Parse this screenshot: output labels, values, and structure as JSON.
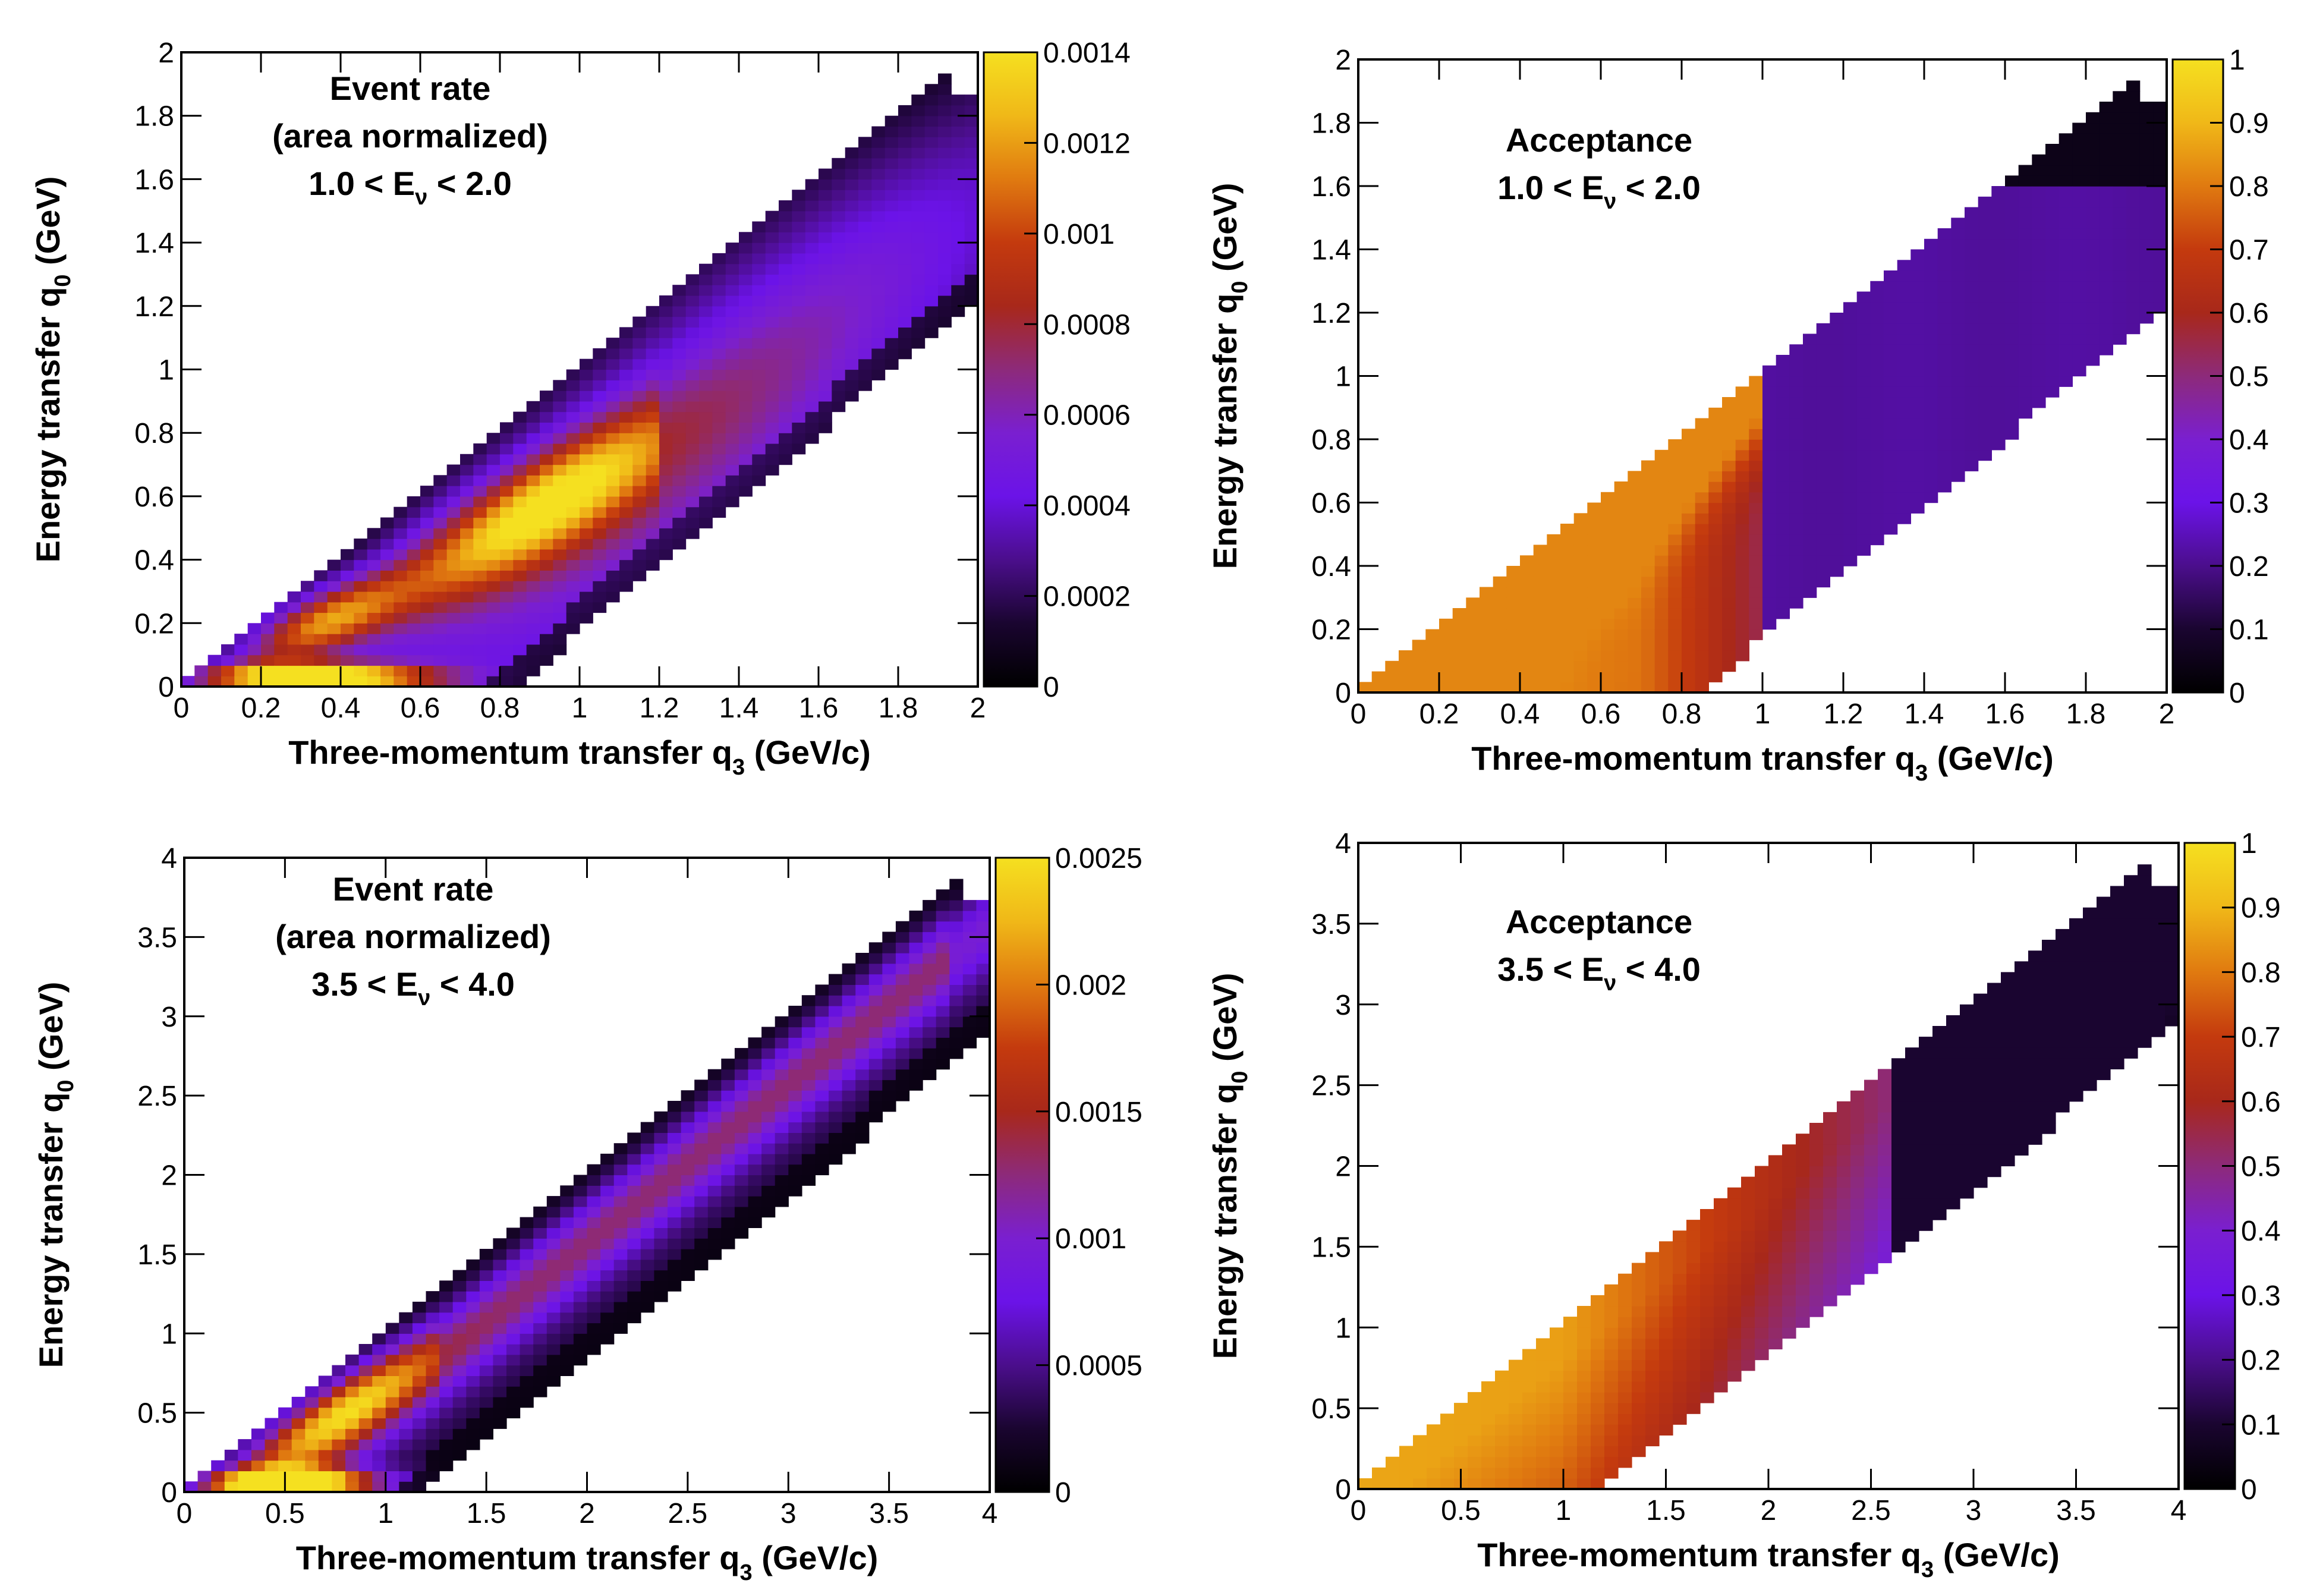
{
  "chart_data": [
    {
      "type": "heatmap",
      "panel": "top-left",
      "xlabel": "Three-momentum transfer q",
      "xlabel_sub": "3",
      "xlabel_unit": " (GeV/c)",
      "ylabel": "Energy transfer q",
      "ylabel_sub": "0",
      "ylabel_unit": " (GeV)",
      "xlim": [
        0,
        2
      ],
      "ylim": [
        0,
        2
      ],
      "xticks": [
        "0",
        "0.2",
        "0.4",
        "0.6",
        "0.8",
        "1",
        "1.2",
        "1.4",
        "1.6",
        "1.8",
        "2"
      ],
      "yticks": [
        "0",
        "0.2",
        "0.4",
        "0.6",
        "0.8",
        "1",
        "1.2",
        "1.4",
        "1.6",
        "1.8",
        "2"
      ],
      "zlim": [
        0,
        0.0014
      ],
      "zticks": [
        "0",
        "0.0002",
        "0.0004",
        "0.0006",
        "0.0008",
        "0.001",
        "0.0012",
        "0.0014"
      ],
      "annotation": [
        "Event rate",
        "(area normalized)"
      ],
      "energy_range": {
        "low": "1.0",
        "var": "E",
        "sub": "ν",
        "high": "2.0"
      },
      "quantity": "rate"
    },
    {
      "type": "heatmap",
      "panel": "top-right",
      "xlabel": "Three-momentum transfer q",
      "xlabel_sub": "3",
      "xlabel_unit": " (GeV/c)",
      "ylabel": "Energy transfer q",
      "ylabel_sub": "0",
      "ylabel_unit": " (GeV)",
      "xlim": [
        0,
        2
      ],
      "ylim": [
        0,
        2
      ],
      "xticks": [
        "0",
        "0.2",
        "0.4",
        "0.6",
        "0.8",
        "1",
        "1.2",
        "1.4",
        "1.6",
        "1.8",
        "2"
      ],
      "yticks": [
        "0",
        "0.2",
        "0.4",
        "0.6",
        "0.8",
        "1",
        "1.2",
        "1.4",
        "1.6",
        "1.8",
        "2"
      ],
      "zlim": [
        0,
        1
      ],
      "zticks": [
        "0",
        "0.1",
        "0.2",
        "0.3",
        "0.4",
        "0.5",
        "0.6",
        "0.7",
        "0.8",
        "0.9",
        "1"
      ],
      "annotation": [
        "Acceptance"
      ],
      "energy_range": {
        "low": "1.0",
        "var": "E",
        "sub": "ν",
        "high": "2.0"
      },
      "quantity": "acceptance"
    },
    {
      "type": "heatmap",
      "panel": "bottom-left",
      "xlabel": "Three-momentum transfer q",
      "xlabel_sub": "3",
      "xlabel_unit": " (GeV/c)",
      "ylabel": "Energy transfer q",
      "ylabel_sub": "0",
      "ylabel_unit": " (GeV)",
      "xlim": [
        0,
        4
      ],
      "ylim": [
        0,
        4
      ],
      "xticks": [
        "0",
        "0.5",
        "1",
        "1.5",
        "2",
        "2.5",
        "3",
        "3.5",
        "4"
      ],
      "yticks": [
        "0",
        "0.5",
        "1",
        "1.5",
        "2",
        "2.5",
        "3",
        "3.5",
        "4"
      ],
      "zlim": [
        0,
        0.0025
      ],
      "zticks": [
        "0",
        "0.0005",
        "0.001",
        "0.0015",
        "0.002",
        "0.0025"
      ],
      "annotation": [
        "Event rate",
        "(area normalized)"
      ],
      "energy_range": {
        "low": "3.5",
        "var": "E",
        "sub": "ν",
        "high": "4.0"
      },
      "quantity": "rate"
    },
    {
      "type": "heatmap",
      "panel": "bottom-right",
      "xlabel": "Three-momentum transfer q",
      "xlabel_sub": "3",
      "xlabel_unit": " (GeV/c)",
      "ylabel": "Energy transfer q",
      "ylabel_sub": "0",
      "ylabel_unit": " (GeV)",
      "xlim": [
        0,
        4
      ],
      "ylim": [
        0,
        4
      ],
      "xticks": [
        "0",
        "0.5",
        "1",
        "1.5",
        "2",
        "2.5",
        "3",
        "3.5",
        "4"
      ],
      "yticks": [
        "0",
        "0.5",
        "1",
        "1.5",
        "2",
        "2.5",
        "3",
        "3.5",
        "4"
      ],
      "zlim": [
        0,
        1
      ],
      "zticks": [
        "0",
        "0.1",
        "0.2",
        "0.3",
        "0.4",
        "0.5",
        "0.6",
        "0.7",
        "0.8",
        "0.9",
        "1"
      ],
      "annotation": [
        "Acceptance"
      ],
      "energy_range": {
        "low": "3.5",
        "var": "E",
        "sub": "ν",
        "high": "4.0"
      },
      "quantity": "acceptance"
    }
  ],
  "colormap": [
    "#000000",
    "#1a0530",
    "#4b0e8c",
    "#6b13e8",
    "#7a1fd0",
    "#8d2a7a",
    "#a8281a",
    "#c43a0e",
    "#e07a10",
    "#f0b818",
    "#f5e020"
  ]
}
